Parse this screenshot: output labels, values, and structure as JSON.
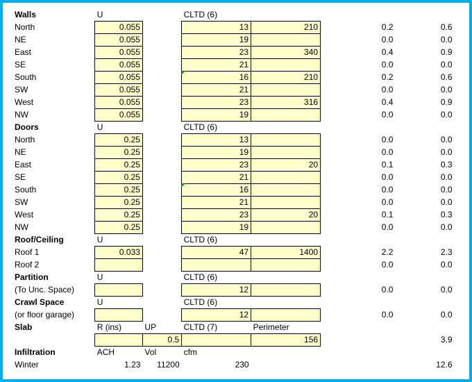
{
  "headers": {
    "u": "U",
    "cltd6": "CLTD (6)",
    "cltd7": "CLTD (7)",
    "perimeter": "Perimeter",
    "rins": "R (ins)",
    "up": "UP",
    "ach": "ACH",
    "vol": "Vol",
    "cfm": "cfm"
  },
  "sections": {
    "walls": "Walls",
    "doors": "Doors",
    "roof": "Roof/Ceiling",
    "partition": "Partition",
    "partition_note": "(To Unc. Space)",
    "crawl": "Crawl Space",
    "crawl_note": "(or floor garage)",
    "slab": "Slab",
    "infiltration": "Infiltration",
    "winter": "Winter"
  },
  "walls": [
    {
      "dir": "North",
      "u": "0.055",
      "cltd": "13",
      "val": "210",
      "r1": "0.2",
      "r2": "0.6"
    },
    {
      "dir": "NE",
      "u": "0.055",
      "cltd": "19",
      "val": "",
      "r1": "0.0",
      "r2": "0.0"
    },
    {
      "dir": "East",
      "u": "0.055",
      "cltd": "23",
      "val": "340",
      "r1": "0.4",
      "r2": "0.9"
    },
    {
      "dir": "SE",
      "u": "0.055",
      "cltd": "21",
      "val": "",
      "r1": "0.0",
      "r2": "0.0"
    },
    {
      "dir": "South",
      "u": "0.055",
      "cltd": "16",
      "val": "210",
      "r1": "0.2",
      "r2": "0.6",
      "mark": true
    },
    {
      "dir": "SW",
      "u": "0.055",
      "cltd": "21",
      "val": "",
      "r1": "0.0",
      "r2": "0.0"
    },
    {
      "dir": "West",
      "u": "0.055",
      "cltd": "23",
      "val": "316",
      "r1": "0.4",
      "r2": "0.9"
    },
    {
      "dir": "NW",
      "u": "0.055",
      "cltd": "19",
      "val": "",
      "r1": "0.0",
      "r2": "0.0"
    }
  ],
  "doors": [
    {
      "dir": "North",
      "u": "0.25",
      "cltd": "13",
      "val": "",
      "r1": "0.0",
      "r2": "0.0"
    },
    {
      "dir": "NE",
      "u": "0.25",
      "cltd": "19",
      "val": "",
      "r1": "0.0",
      "r2": "0.0"
    },
    {
      "dir": "East",
      "u": "0.25",
      "cltd": "23",
      "val": "20",
      "r1": "0.1",
      "r2": "0.3"
    },
    {
      "dir": "SE",
      "u": "0.25",
      "cltd": "21",
      "val": "",
      "r1": "0.0",
      "r2": "0.0"
    },
    {
      "dir": "South",
      "u": "0.25",
      "cltd": "16",
      "val": "",
      "r1": "0.0",
      "r2": "0.0",
      "mark": true
    },
    {
      "dir": "SW",
      "u": "0.25",
      "cltd": "21",
      "val": "",
      "r1": "0.0",
      "r2": "0.0"
    },
    {
      "dir": "West",
      "u": "0.25",
      "cltd": "23",
      "val": "20",
      "r1": "0.1",
      "r2": "0.3"
    },
    {
      "dir": "NW",
      "u": "0.25",
      "cltd": "19",
      "val": "",
      "r1": "0.0",
      "r2": "0.0"
    }
  ],
  "roof": [
    {
      "dir": "Roof 1",
      "u": "0.033",
      "cltd": "47",
      "val": "1400",
      "r1": "2.2",
      "r2": "2.3"
    },
    {
      "dir": "Roof 2",
      "u": "",
      "cltd": "",
      "val": "",
      "r1": "0.0",
      "r2": "0.0"
    }
  ],
  "partition": {
    "cltd": "12",
    "r1": "0.0",
    "r2": "0.0"
  },
  "crawl": {
    "cltd": "12",
    "r1": "0.0",
    "r2": "0.0"
  },
  "slab": {
    "up": "0.5",
    "perimeter": "156",
    "r2": "3.9"
  },
  "infiltration": {
    "ach": "1.23",
    "vol": "11200",
    "cfm": "230",
    "r2": "12.6"
  }
}
